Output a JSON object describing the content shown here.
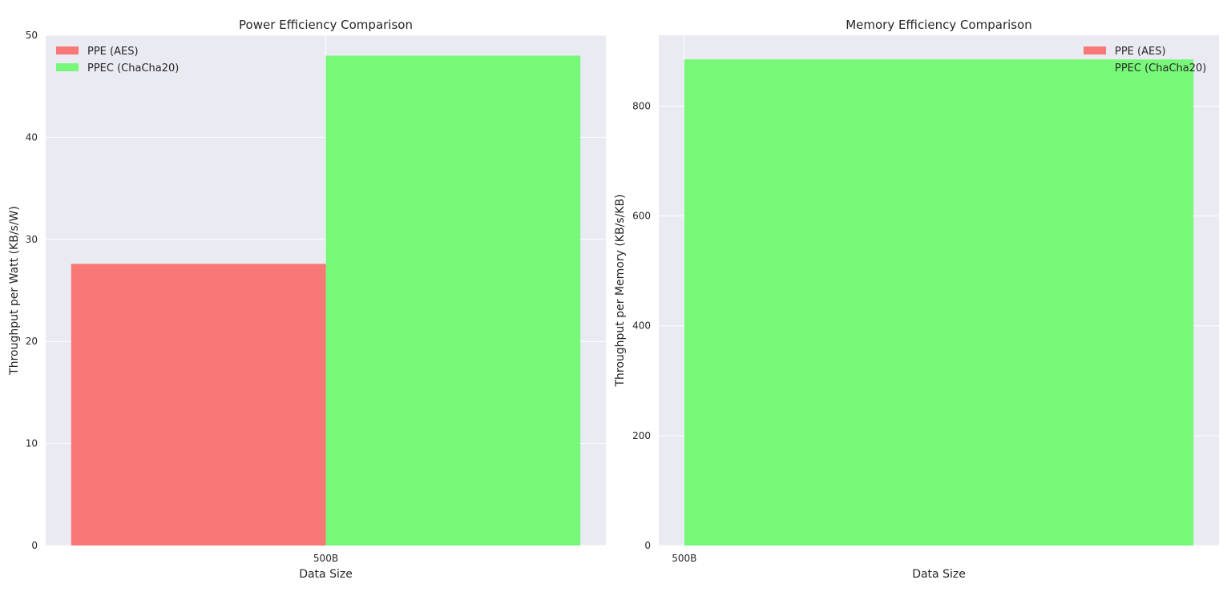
{
  "chart_data": [
    {
      "type": "bar",
      "title": "Power Efficiency Comparison",
      "xlabel": "Data Size",
      "ylabel": "Throughput per Watt (KB/s/W)",
      "categories": [
        "500B"
      ],
      "series": [
        {
          "name": "PPE (AES)",
          "values": [
            27.6
          ],
          "color": "#f87878"
        },
        {
          "name": "PPEC (ChaCha20)",
          "values": [
            48.0
          ],
          "color": "#78f878"
        }
      ],
      "ylim": [
        0,
        50
      ],
      "xlim": [
        -0.55,
        0.55
      ],
      "bar_width": 0.5,
      "yticks": [
        0,
        10,
        20,
        30,
        40,
        50
      ],
      "grid": true,
      "legend": "top-left"
    },
    {
      "type": "bar",
      "title": "Memory Efficiency Comparison",
      "xlabel": "Data Size",
      "ylabel": "Throughput per Memory (KB/s/KB)",
      "categories": [
        "500B"
      ],
      "series": [
        {
          "name": "PPE (AES)",
          "values": [
            0.0
          ],
          "color": "#f87878"
        },
        {
          "name": "PPEC (ChaCha20)",
          "values": [
            885
          ],
          "color": "#78f878"
        }
      ],
      "ylim": [
        0,
        929
      ],
      "xlim": [
        -0.05,
        1.05
      ],
      "bar_width": 1.0,
      "yticks": [
        0,
        200,
        400,
        600,
        800
      ],
      "grid": true,
      "legend": "top-right"
    }
  ]
}
